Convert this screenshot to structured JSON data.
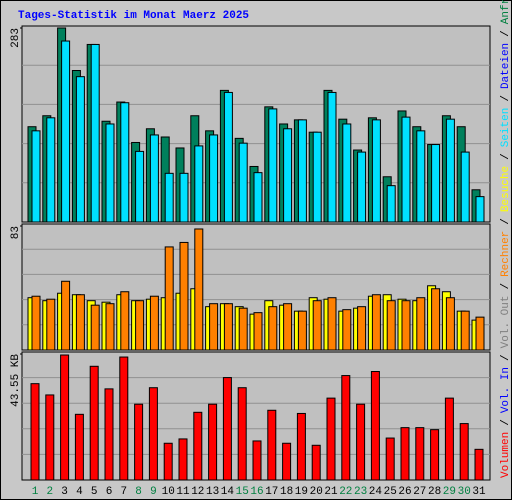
{
  "title": "Tages-Statistik im Monat Maerz 2025",
  "side_legend": [
    {
      "text": "Volumen",
      "color": "#ff0000"
    },
    {
      "text": "Vol. In",
      "color": "#0000ff"
    },
    {
      "text": "Vol. Out",
      "color": "#808080"
    },
    {
      "text": "Rechner",
      "color": "#ff8000"
    },
    {
      "text": "Besuche",
      "color": "#ffff00"
    },
    {
      "text": "Seiten",
      "color": "#00e0ff"
    },
    {
      "text": "Dateien",
      "color": "#0000ff"
    },
    {
      "text": "Anfragen",
      "color": "#008040"
    }
  ],
  "separator": "/",
  "chart_data": [
    {
      "type": "bar",
      "ylim": [
        0,
        283
      ],
      "yticks": [
        283
      ],
      "series": [
        {
          "color": "#00805c",
          "values": [
            139,
            155,
            283,
            221,
            259,
            147,
            175,
            116,
            136,
            124,
            108,
            155,
            133,
            192,
            122,
            81,
            168,
            143,
            149,
            131,
            192,
            150,
            105,
            152,
            66,
            162,
            139,
            113,
            155,
            139,
            47
          ]
        },
        {
          "color": "#00e0ff",
          "values": [
            133,
            152,
            264,
            212,
            259,
            143,
            174,
            103,
            127,
            71,
            71,
            111,
            127,
            189,
            115,
            72,
            165,
            136,
            149,
            131,
            189,
            143,
            102,
            149,
            53,
            153,
            133,
            113,
            150,
            102,
            37
          ]
        }
      ]
    },
    {
      "type": "bar",
      "ylim": [
        0,
        83
      ],
      "yticks": [
        83
      ],
      "series": [
        {
          "color": "#ffff00",
          "values": [
            35,
            33,
            38,
            37,
            33,
            32,
            37,
            33,
            34,
            35,
            38,
            41,
            29,
            31,
            29,
            24,
            33,
            30,
            26,
            35,
            34,
            26,
            28,
            36,
            37,
            34,
            33,
            43,
            39,
            26,
            20
          ]
        },
        {
          "color": "#ff8000",
          "values": [
            36,
            34,
            46,
            37,
            30,
            31,
            39,
            33,
            36,
            69,
            72,
            81,
            31,
            31,
            28,
            25,
            29,
            31,
            26,
            33,
            35,
            27,
            29,
            37,
            33,
            33,
            35,
            41,
            35,
            26,
            22
          ]
        }
      ]
    },
    {
      "type": "bar",
      "ylim": [
        0,
        43.55
      ],
      "yticks": [
        {
          "value": 43.55,
          "label": "43.55 KB"
        }
      ],
      "categories": [
        "1",
        "2",
        "3",
        "4",
        "5",
        "6",
        "7",
        "8",
        "9",
        "10",
        "11",
        "12",
        "13",
        "14",
        "15",
        "16",
        "17",
        "18",
        "19",
        "20",
        "21",
        "22",
        "23",
        "24",
        "25",
        "26",
        "27",
        "28",
        "29",
        "30",
        "31"
      ],
      "category_colors": [
        "#008040",
        "#008040",
        "#000000",
        "#000000",
        "#000000",
        "#000000",
        "#000000",
        "#008040",
        "#008040",
        "#000000",
        "#000000",
        "#000000",
        "#000000",
        "#000000",
        "#008040",
        "#008040",
        "#000000",
        "#000000",
        "#000000",
        "#000000",
        "#000000",
        "#008040",
        "#008040",
        "#000000",
        "#000000",
        "#000000",
        "#000000",
        "#000000",
        "#008040",
        "#008040",
        "#000000"
      ],
      "series": [
        {
          "color": "#ff0000",
          "values": [
            33.3,
            29.4,
            43.2,
            22.7,
            39.3,
            31.5,
            42.5,
            26.2,
            31.9,
            12.7,
            14.2,
            23.4,
            26.2,
            35.4,
            31.9,
            13.5,
            24.1,
            12.7,
            23,
            12,
            28.3,
            36.1,
            26.2,
            37.5,
            14.5,
            18.1,
            18.1,
            17.4,
            28.3,
            19.5,
            10.6
          ]
        }
      ]
    }
  ]
}
